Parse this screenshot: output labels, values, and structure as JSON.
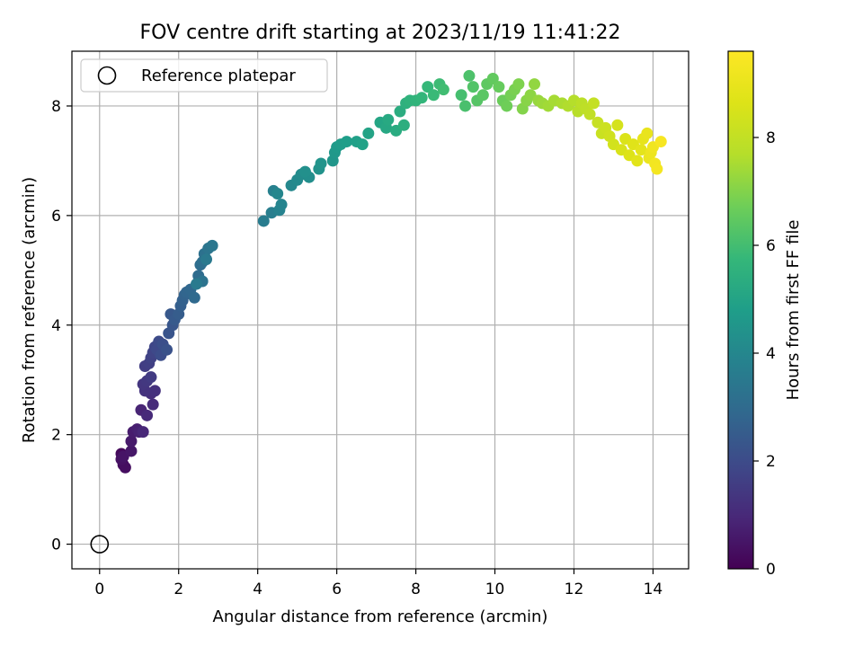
{
  "chart_data": {
    "type": "scatter",
    "title": "FOV centre drift starting at 2023/11/19 11:41:22",
    "xlabel": "Angular distance from reference (arcmin)",
    "ylabel": "Rotation from reference (arcmin)",
    "xlim": [
      -0.7,
      14.9
    ],
    "ylim": [
      -0.45,
      9.0
    ],
    "xticks": [
      0,
      2,
      4,
      6,
      8,
      10,
      12,
      14
    ],
    "yticks": [
      0,
      2,
      4,
      6,
      8
    ],
    "grid": true,
    "legend": {
      "placement": "top-left",
      "entries": [
        {
          "label": "Reference platepar",
          "marker": "open-circle"
        }
      ]
    },
    "reference_point": {
      "label": "Reference platepar",
      "x": 0,
      "y": 0
    },
    "colorbar": {
      "label": "Hours from first FF file",
      "range": [
        0,
        9.6
      ],
      "ticks": [
        0,
        2,
        4,
        6,
        8
      ],
      "colormap": "viridis"
    },
    "series": [
      {
        "points": [
          [
            0.55,
            1.65
          ],
          [
            0.6,
            1.45
          ],
          [
            0.65,
            1.4
          ],
          [
            0.55,
            1.55
          ],
          [
            0.6,
            1.6
          ],
          [
            0.8,
            1.7
          ],
          [
            0.8,
            1.88
          ],
          [
            0.85,
            2.05
          ],
          [
            0.95,
            2.1
          ],
          [
            1.0,
            2.05
          ],
          [
            1.05,
            2.45
          ],
          [
            1.1,
            2.05
          ],
          [
            1.2,
            2.35
          ],
          [
            1.35,
            2.55
          ],
          [
            1.3,
            2.75
          ],
          [
            1.4,
            2.8
          ],
          [
            1.15,
            2.8
          ],
          [
            1.1,
            2.92
          ],
          [
            1.2,
            2.98
          ],
          [
            1.3,
            3.05
          ],
          [
            1.15,
            3.25
          ],
          [
            1.25,
            3.3
          ],
          [
            1.3,
            3.4
          ],
          [
            1.35,
            3.5
          ],
          [
            1.4,
            3.6
          ],
          [
            1.45,
            3.55
          ],
          [
            1.5,
            3.7
          ],
          [
            1.55,
            3.45
          ],
          [
            1.6,
            3.65
          ],
          [
            1.7,
            3.55
          ],
          [
            1.75,
            3.85
          ],
          [
            1.85,
            4.0
          ],
          [
            1.8,
            4.2
          ],
          [
            1.9,
            4.1
          ],
          [
            2.0,
            4.2
          ],
          [
            2.05,
            4.35
          ],
          [
            2.1,
            4.45
          ],
          [
            2.15,
            4.55
          ],
          [
            2.2,
            4.6
          ],
          [
            2.3,
            4.65
          ],
          [
            2.4,
            4.5
          ],
          [
            2.5,
            4.9
          ],
          [
            2.55,
            5.1
          ],
          [
            2.6,
            5.15
          ],
          [
            2.65,
            5.3
          ],
          [
            2.6,
            4.8
          ],
          [
            2.75,
            5.4
          ],
          [
            2.85,
            5.45
          ],
          [
            2.7,
            5.2
          ],
          [
            2.45,
            4.75
          ],
          [
            4.15,
            5.9
          ],
          [
            4.35,
            6.05
          ],
          [
            4.4,
            6.45
          ],
          [
            4.55,
            6.1
          ],
          [
            4.6,
            6.2
          ],
          [
            4.5,
            6.4
          ],
          [
            4.85,
            6.55
          ],
          [
            5.0,
            6.65
          ],
          [
            5.1,
            6.75
          ],
          [
            5.3,
            6.7
          ],
          [
            5.2,
            6.8
          ],
          [
            5.55,
            6.85
          ],
          [
            5.6,
            6.95
          ],
          [
            5.9,
            7.0
          ],
          [
            5.95,
            7.15
          ],
          [
            6.0,
            7.25
          ],
          [
            6.1,
            7.3
          ],
          [
            6.25,
            7.35
          ],
          [
            6.5,
            7.35
          ],
          [
            6.65,
            7.3
          ],
          [
            6.8,
            7.5
          ],
          [
            7.1,
            7.7
          ],
          [
            7.25,
            7.6
          ],
          [
            7.3,
            7.75
          ],
          [
            7.5,
            7.55
          ],
          [
            7.6,
            7.9
          ],
          [
            7.7,
            7.65
          ],
          [
            7.75,
            8.05
          ],
          [
            7.85,
            8.1
          ],
          [
            8.0,
            8.1
          ],
          [
            8.15,
            8.15
          ],
          [
            8.3,
            8.35
          ],
          [
            8.45,
            8.2
          ],
          [
            8.6,
            8.4
          ],
          [
            8.7,
            8.3
          ],
          [
            9.15,
            8.2
          ],
          [
            9.25,
            8.0
          ],
          [
            9.35,
            8.55
          ],
          [
            9.45,
            8.35
          ],
          [
            9.55,
            8.1
          ],
          [
            9.7,
            8.2
          ],
          [
            9.8,
            8.4
          ],
          [
            9.95,
            8.5
          ],
          [
            10.1,
            8.35
          ],
          [
            10.2,
            8.1
          ],
          [
            10.3,
            8.0
          ],
          [
            10.4,
            8.2
          ],
          [
            10.5,
            8.3
          ],
          [
            10.6,
            8.4
          ],
          [
            10.7,
            7.95
          ],
          [
            10.8,
            8.1
          ],
          [
            10.9,
            8.2
          ],
          [
            11.0,
            8.4
          ],
          [
            11.1,
            8.1
          ],
          [
            11.2,
            8.05
          ],
          [
            11.35,
            8.0
          ],
          [
            11.5,
            8.1
          ],
          [
            11.7,
            8.05
          ],
          [
            11.85,
            8.0
          ],
          [
            12.0,
            8.1
          ],
          [
            12.1,
            7.9
          ],
          [
            12.2,
            8.05
          ],
          [
            12.3,
            7.95
          ],
          [
            12.4,
            7.85
          ],
          [
            12.5,
            8.05
          ],
          [
            12.6,
            7.7
          ],
          [
            12.7,
            7.5
          ],
          [
            12.8,
            7.6
          ],
          [
            12.9,
            7.45
          ],
          [
            13.0,
            7.3
          ],
          [
            13.1,
            7.65
          ],
          [
            13.2,
            7.2
          ],
          [
            13.3,
            7.4
          ],
          [
            13.4,
            7.1
          ],
          [
            13.5,
            7.3
          ],
          [
            13.6,
            7.0
          ],
          [
            13.7,
            7.2
          ],
          [
            13.75,
            7.4
          ],
          [
            13.85,
            7.5
          ],
          [
            13.9,
            7.05
          ],
          [
            13.95,
            7.15
          ],
          [
            14.0,
            7.25
          ],
          [
            14.05,
            6.95
          ],
          [
            14.1,
            6.85
          ],
          [
            14.2,
            7.35
          ]
        ]
      }
    ]
  }
}
